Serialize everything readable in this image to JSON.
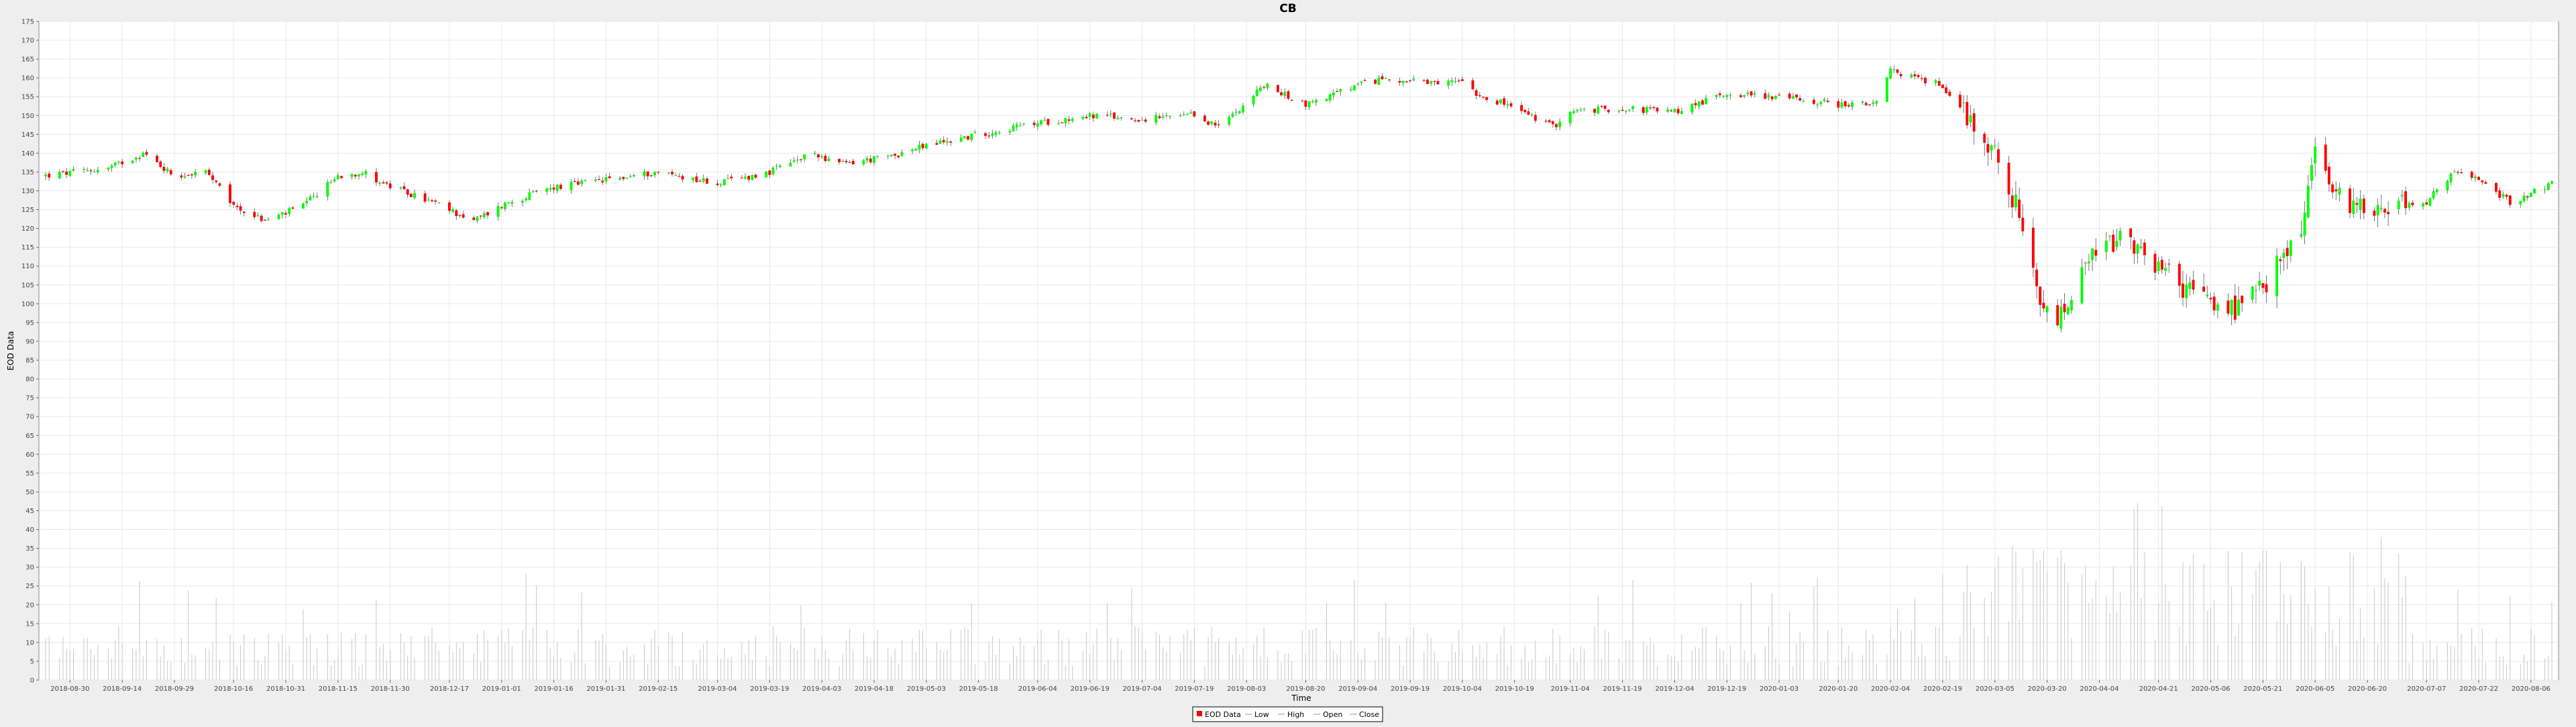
{
  "chart_data": {
    "type": "candlestick",
    "title": "CB",
    "xlabel": "Time",
    "ylabel": "EOD Data",
    "ylim": [
      0,
      175
    ],
    "y_ticks": [
      0,
      5,
      10,
      15,
      20,
      25,
      30,
      35,
      40,
      45,
      50,
      55,
      60,
      65,
      70,
      75,
      80,
      85,
      90,
      95,
      100,
      105,
      110,
      115,
      120,
      125,
      130,
      135,
      140,
      145,
      150,
      155,
      160,
      165,
      170,
      175
    ],
    "x_range": [
      "2018-08-23",
      "2020-08-12"
    ],
    "x_ticks": [
      "2018-08-30",
      "2018-09-14",
      "2018-09-29",
      "2018-10-16",
      "2018-10-31",
      "2018-11-15",
      "2018-11-30",
      "2018-12-17",
      "2019-01-01",
      "2019-01-16",
      "2019-01-31",
      "2019-02-15",
      "2019-03-04",
      "2019-03-19",
      "2019-04-03",
      "2019-04-18",
      "2019-05-03",
      "2019-05-18",
      "2019-06-04",
      "2019-06-19",
      "2019-07-04",
      "2019-07-19",
      "2019-08-03",
      "2019-08-20",
      "2019-09-04",
      "2019-09-19",
      "2019-10-04",
      "2019-10-19",
      "2019-11-04",
      "2019-11-19",
      "2019-12-04",
      "2019-12-19",
      "2020-01-03",
      "2020-01-20",
      "2020-02-04",
      "2020-02-19",
      "2020-03-05",
      "2020-03-20",
      "2020-04-04",
      "2020-04-21",
      "2020-05-06",
      "2020-05-21",
      "2020-06-05",
      "2020-06-20",
      "2020-07-07",
      "2020-07-22",
      "2020-08-06"
    ],
    "legend": {
      "placement": "bottom-center",
      "items": [
        "EOD Data",
        "Low",
        "High",
        "Open",
        "Close"
      ]
    },
    "grid": true,
    "colors": {
      "up": "#00ff00",
      "down": "#ff0000",
      "volume": "#c8c8c8",
      "grid": "#e8e8e8"
    },
    "close_anchors": [
      [
        "2018-08-23",
        134
      ],
      [
        "2018-09-10",
        136
      ],
      [
        "2018-09-20",
        140
      ],
      [
        "2018-09-29",
        134
      ],
      [
        "2018-10-08",
        135
      ],
      [
        "2018-10-16",
        126
      ],
      [
        "2018-10-25",
        122
      ],
      [
        "2018-11-05",
        126
      ],
      [
        "2018-11-15",
        134
      ],
      [
        "2018-11-22",
        135
      ],
      [
        "2018-11-30",
        131
      ],
      [
        "2018-12-12",
        127
      ],
      [
        "2018-12-24",
        122
      ],
      [
        "2019-01-03",
        127
      ],
      [
        "2019-01-16",
        131
      ],
      [
        "2019-02-01",
        133
      ],
      [
        "2019-02-15",
        135
      ],
      [
        "2019-03-04",
        132
      ],
      [
        "2019-03-19",
        135
      ],
      [
        "2019-04-01",
        140
      ],
      [
        "2019-04-08",
        137
      ],
      [
        "2019-04-22",
        139
      ],
      [
        "2019-05-03",
        142
      ],
      [
        "2019-05-18",
        145
      ],
      [
        "2019-06-04",
        148
      ],
      [
        "2019-06-19",
        150
      ],
      [
        "2019-07-04",
        149
      ],
      [
        "2019-07-19",
        150
      ],
      [
        "2019-07-26",
        147
      ],
      [
        "2019-08-08",
        158
      ],
      [
        "2019-08-20",
        153
      ],
      [
        "2019-09-04",
        158
      ],
      [
        "2019-09-12",
        160
      ],
      [
        "2019-09-27",
        158
      ],
      [
        "2019-10-04",
        160
      ],
      [
        "2019-10-08",
        156
      ],
      [
        "2019-10-19",
        152
      ],
      [
        "2019-10-30",
        147
      ],
      [
        "2019-11-04",
        151
      ],
      [
        "2019-11-19",
        152
      ],
      [
        "2019-12-04",
        151
      ],
      [
        "2019-12-19",
        156
      ],
      [
        "2020-01-03",
        155
      ],
      [
        "2020-01-20",
        153
      ],
      [
        "2020-01-31",
        153
      ],
      [
        "2020-02-04",
        162
      ],
      [
        "2020-02-19",
        158
      ],
      [
        "2020-02-26",
        150
      ],
      [
        "2020-03-05",
        140
      ],
      [
        "2020-03-11",
        126
      ],
      [
        "2020-03-18",
        99
      ],
      [
        "2020-03-23",
        95
      ],
      [
        "2020-04-02",
        112
      ],
      [
        "2020-04-09",
        117
      ],
      [
        "2020-04-21",
        110
      ],
      [
        "2020-04-30",
        103
      ],
      [
        "2020-05-13",
        98
      ],
      [
        "2020-05-21",
        104
      ],
      [
        "2020-06-01",
        120
      ],
      [
        "2020-06-05",
        141
      ],
      [
        "2020-06-11",
        128
      ],
      [
        "2020-06-20",
        126
      ],
      [
        "2020-07-07",
        127
      ],
      [
        "2020-07-15",
        135
      ],
      [
        "2020-07-22",
        133
      ],
      [
        "2020-07-31",
        127
      ],
      [
        "2020-08-12",
        132
      ]
    ],
    "volume_ticks_note": ""
  }
}
